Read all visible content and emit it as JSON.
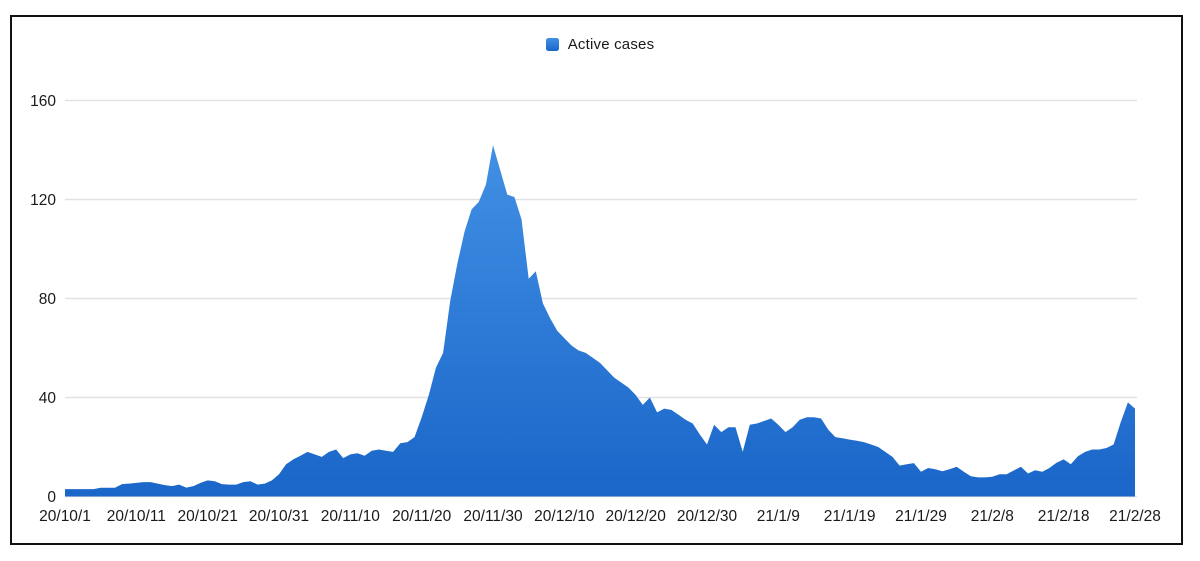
{
  "chart_data": {
    "type": "area",
    "legend_label": "Active cases",
    "legend_position": "top-center",
    "grid": "horizontal",
    "x_axis": {
      "tick_labels": [
        "20/10/1",
        "20/10/11",
        "20/10/21",
        "20/10/31",
        "20/11/10",
        "20/11/20",
        "20/11/30",
        "20/12/10",
        "20/12/20",
        "20/12/30",
        "21/1/9",
        "21/1/19",
        "21/1/29",
        "21/2/8",
        "21/2/18",
        "21/2/28"
      ],
      "tick_interval_days": 10,
      "start_date": "20/10/1",
      "end_date": "21/2/28"
    },
    "y_axis": {
      "tick_labels": [
        "0",
        "40",
        "80",
        "120",
        "160"
      ],
      "ticks": [
        0,
        40,
        80,
        120,
        160
      ],
      "ylim": [
        0,
        160
      ]
    },
    "series": [
      {
        "name": "Active cases",
        "sampling": "daily",
        "values": [
          3,
          3,
          3,
          3,
          3,
          3.5,
          3.5,
          3.5,
          5,
          5.2,
          5.5,
          5.8,
          5.8,
          5.2,
          4.6,
          4.2,
          4.8,
          3.6,
          4.2,
          5.5,
          6.5,
          6.2,
          5,
          4.8,
          4.8,
          5.8,
          6.2,
          4.8,
          5.2,
          6.5,
          9,
          13,
          15,
          16.5,
          18,
          17,
          16,
          18,
          19,
          15.5,
          17,
          17.5,
          16.5,
          18.5,
          19,
          18.5,
          18,
          21.5,
          22,
          24,
          32,
          41,
          52,
          58,
          79,
          94,
          107,
          116,
          119,
          126,
          142,
          132,
          122,
          121,
          112,
          88,
          91,
          78,
          72,
          67,
          64,
          61,
          59,
          58,
          56,
          54,
          51,
          48,
          46,
          44,
          41,
          37,
          40,
          34,
          35.5,
          35,
          33,
          31,
          29.5,
          25,
          21,
          29,
          26,
          28,
          28,
          18,
          29,
          29.5,
          30.5,
          31.5,
          29,
          26,
          28,
          31,
          32,
          32,
          31.5,
          27,
          24,
          23.5,
          23,
          22.5,
          22,
          21,
          20,
          18,
          16,
          12.5,
          13,
          13.5,
          10,
          11.5,
          11,
          10.2,
          11,
          12,
          10,
          8.2,
          7.7,
          7.7,
          8,
          9,
          9,
          10.5,
          12,
          9.3,
          10.6,
          10,
          11.5,
          13.6,
          15,
          13,
          16.3,
          18,
          19,
          19,
          19.6,
          21,
          30,
          38,
          35.5
        ]
      }
    ],
    "peak": {
      "value": 142,
      "date": "20/11/30"
    },
    "colors": {
      "area_top": "#4190E4",
      "area_bottom": "#1A66C9",
      "gridline": "#E2E2E2",
      "text": "#1A1A1A",
      "frame_border": "#111111",
      "background": "#FFFFFF"
    }
  }
}
